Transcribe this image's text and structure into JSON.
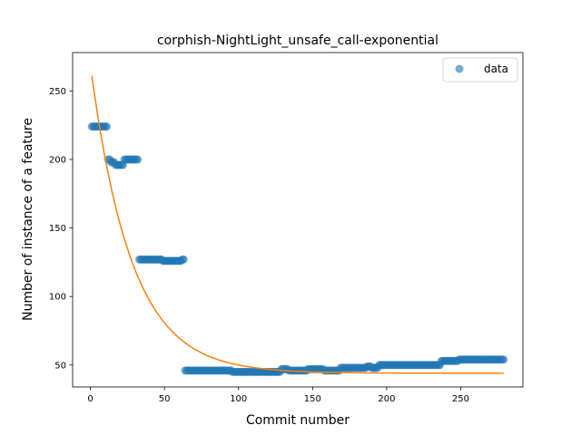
{
  "chart_data": {
    "type": "scatter",
    "title": "corphish-NightLight_unsafe_call-exponential",
    "xlabel": "Commit number",
    "ylabel": "Number of instance of a feature",
    "xlim": [
      -12,
      292
    ],
    "ylim": [
      34,
      278
    ],
    "x_ticks": [
      0,
      50,
      100,
      150,
      200,
      250
    ],
    "y_ticks": [
      50,
      100,
      150,
      200,
      250
    ],
    "grid": false,
    "legend": {
      "position": "upper right",
      "entries": [
        "data"
      ]
    },
    "colors": {
      "data": "#1f77b4",
      "fit": "#ff7f0e"
    },
    "data_segments": [
      {
        "x_start": 1,
        "x_end": 11,
        "y": 224
      },
      {
        "x_start": 12,
        "x_end": 13,
        "y": 200
      },
      {
        "x_start": 14,
        "x_end": 16,
        "y": 198
      },
      {
        "x_start": 17,
        "x_end": 22,
        "y": 196
      },
      {
        "x_start": 23,
        "x_end": 32,
        "y": 200
      },
      {
        "x_start": 33,
        "x_end": 48,
        "y": 127
      },
      {
        "x_start": 49,
        "x_end": 61,
        "y": 126
      },
      {
        "x_start": 62,
        "x_end": 63,
        "y": 127
      },
      {
        "x_start": 64,
        "x_end": 95,
        "y": 46
      },
      {
        "x_start": 96,
        "x_end": 128,
        "y": 45
      },
      {
        "x_start": 129,
        "x_end": 133,
        "y": 47
      },
      {
        "x_start": 134,
        "x_end": 146,
        "y": 46
      },
      {
        "x_start": 147,
        "x_end": 157,
        "y": 47
      },
      {
        "x_start": 158,
        "x_end": 168,
        "y": 46
      },
      {
        "x_start": 169,
        "x_end": 186,
        "y": 48
      },
      {
        "x_start": 187,
        "x_end": 189,
        "y": 49
      },
      {
        "x_start": 190,
        "x_end": 194,
        "y": 48
      },
      {
        "x_start": 195,
        "x_end": 236,
        "y": 50
      },
      {
        "x_start": 237,
        "x_end": 248,
        "y": 53
      },
      {
        "x_start": 249,
        "x_end": 279,
        "y": 54
      }
    ],
    "fit": {
      "name": "exponential",
      "formula": "y = a * exp(-b * x) + c",
      "a": 225,
      "b": 0.0362,
      "c": 44,
      "x_range": [
        1,
        279
      ]
    }
  }
}
